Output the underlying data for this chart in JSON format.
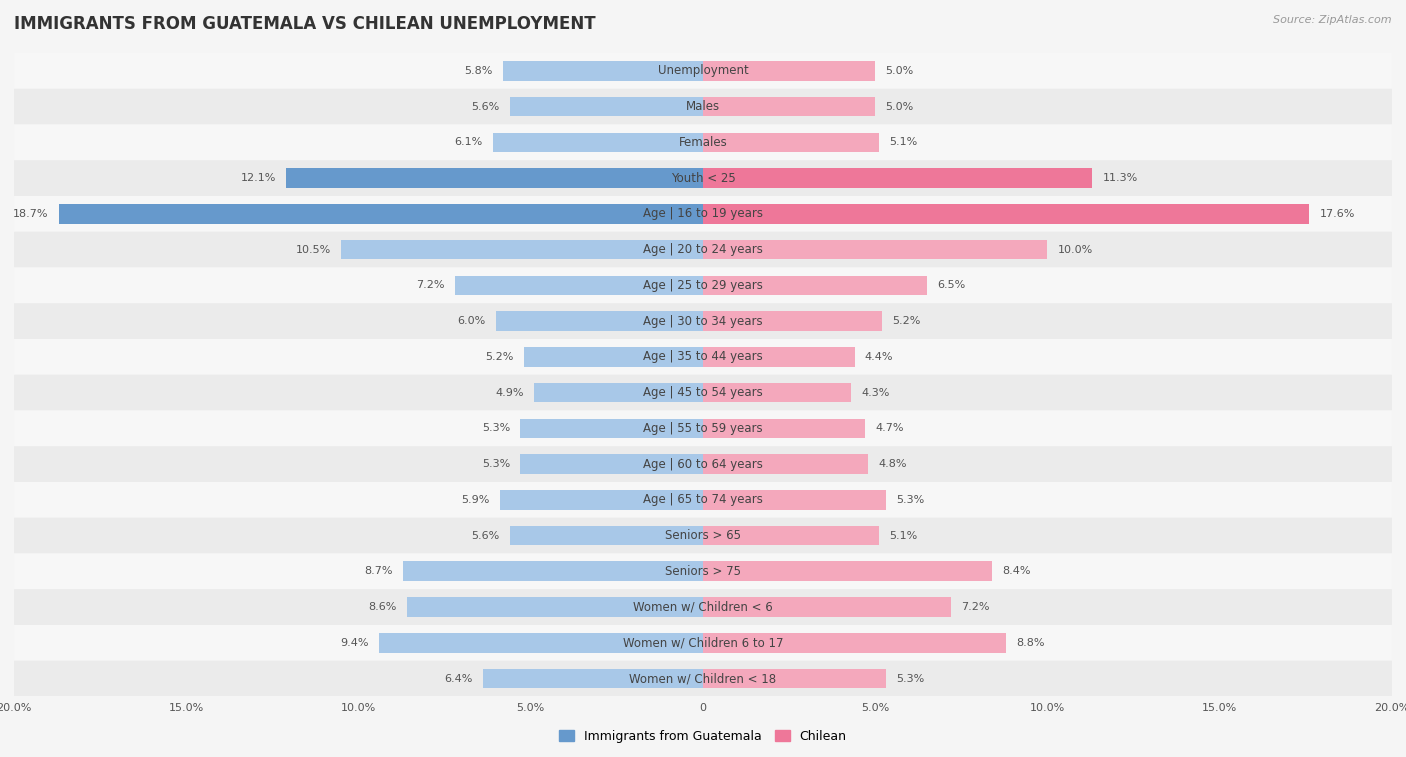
{
  "title": "IMMIGRANTS FROM GUATEMALA VS CHILEAN UNEMPLOYMENT",
  "source": "Source: ZipAtlas.com",
  "categories": [
    "Unemployment",
    "Males",
    "Females",
    "Youth < 25",
    "Age | 16 to 19 years",
    "Age | 20 to 24 years",
    "Age | 25 to 29 years",
    "Age | 30 to 34 years",
    "Age | 35 to 44 years",
    "Age | 45 to 54 years",
    "Age | 55 to 59 years",
    "Age | 60 to 64 years",
    "Age | 65 to 74 years",
    "Seniors > 65",
    "Seniors > 75",
    "Women w/ Children < 6",
    "Women w/ Children 6 to 17",
    "Women w/ Children < 18"
  ],
  "guatemala_values": [
    5.8,
    5.6,
    6.1,
    12.1,
    18.7,
    10.5,
    7.2,
    6.0,
    5.2,
    4.9,
    5.3,
    5.3,
    5.9,
    5.6,
    8.7,
    8.6,
    9.4,
    6.4
  ],
  "chilean_values": [
    5.0,
    5.0,
    5.1,
    11.3,
    17.6,
    10.0,
    6.5,
    5.2,
    4.4,
    4.3,
    4.7,
    4.8,
    5.3,
    5.1,
    8.4,
    7.2,
    8.8,
    5.3
  ],
  "guatemala_color": "#a8c8e8",
  "chilean_color": "#f4a8bc",
  "guatemala_highlight_color": "#6699cc",
  "chilean_highlight_color": "#ee7799",
  "highlight_rows": [
    3,
    4
  ],
  "bar_height": 0.55,
  "xlim": 20.0,
  "row_bg_light": "#f7f7f7",
  "row_bg_dark": "#ebebeb",
  "fig_bg": "#f5f5f5",
  "title_fontsize": 12,
  "label_fontsize": 8.5,
  "value_fontsize": 8,
  "legend_fontsize": 9,
  "source_fontsize": 8,
  "axis_label_fontsize": 8
}
